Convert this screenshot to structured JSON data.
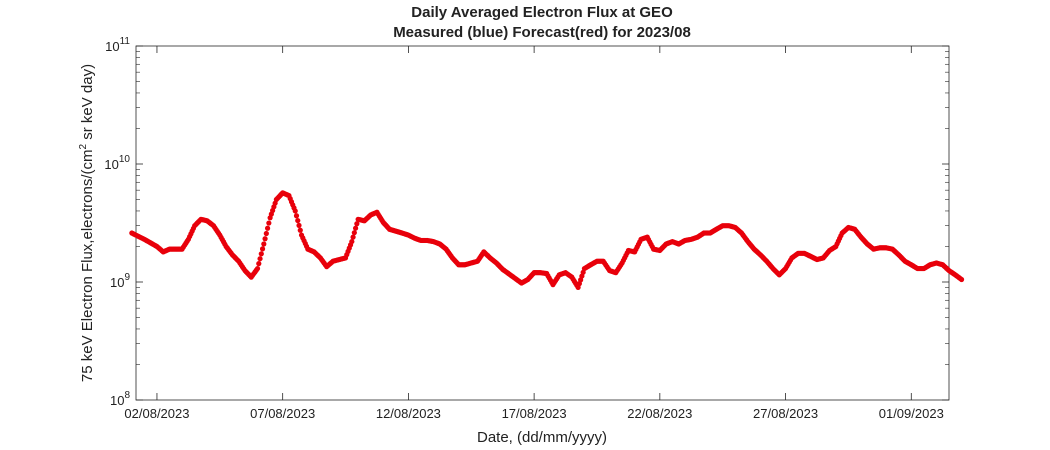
{
  "chart_data": {
    "type": "scatter",
    "title": "Daily Averaged Electron Flux at GEO",
    "subtitle": "Measured (blue) Forecast(red) for 2023/08",
    "xlabel": "Date, (dd/mm/yyyy)",
    "ylabel": "75 keV Electron Flux,electrons/(cm² sr keV day)",
    "ylabel_parts": [
      "75 keV Electron Flux,electrons/(cm",
      "2",
      " sr keV day)"
    ],
    "yscale": "log",
    "ylim": [
      100000000,
      100000000000
    ],
    "xlim": [
      "2023-08-01 04:00",
      "2023-09-02 12:00"
    ],
    "grid": false,
    "x_ticks": [
      "02/08/2023",
      "07/08/2023",
      "12/08/2023",
      "17/08/2023",
      "22/08/2023",
      "27/08/2023",
      "01/09/2023"
    ],
    "y_ticks": [
      {
        "value": 100000000,
        "base": "10",
        "exponent": "8"
      },
      {
        "value": 1000000000,
        "base": "10",
        "exponent": "9"
      },
      {
        "value": 10000000000,
        "base": "10",
        "exponent": "10"
      },
      {
        "value": 100000000000,
        "base": "10",
        "exponent": "11"
      }
    ],
    "series": [
      {
        "color": "#e8000b",
        "points": [
          [
            "2023-08-01 00:00",
            2600000000.0
          ],
          [
            "2023-08-01 12:00",
            2300000000.0
          ],
          [
            "2023-08-02 00:00",
            2000000000.0
          ],
          [
            "2023-08-02 06:00",
            1800000000.0
          ],
          [
            "2023-08-02 12:00",
            1900000000.0
          ],
          [
            "2023-08-03 00:00",
            1900000000.0
          ],
          [
            "2023-08-03 06:00",
            2300000000.0
          ],
          [
            "2023-08-03 12:00",
            3000000000.0
          ],
          [
            "2023-08-03 18:00",
            3400000000.0
          ],
          [
            "2023-08-04 00:00",
            3300000000.0
          ],
          [
            "2023-08-04 06:00",
            3000000000.0
          ],
          [
            "2023-08-04 12:00",
            2500000000.0
          ],
          [
            "2023-08-04 18:00",
            2000000000.0
          ],
          [
            "2023-08-05 00:00",
            1700000000.0
          ],
          [
            "2023-08-05 06:00",
            1500000000.0
          ],
          [
            "2023-08-05 12:00",
            1250000000.0
          ],
          [
            "2023-08-05 18:00",
            1100000000.0
          ],
          [
            "2023-08-06 00:00",
            1300000000.0
          ],
          [
            "2023-08-06 06:00",
            2100000000.0
          ],
          [
            "2023-08-06 12:00",
            3500000000.0
          ],
          [
            "2023-08-06 18:00",
            5000000000.0
          ],
          [
            "2023-08-07 00:00",
            5700000000.0
          ],
          [
            "2023-08-07 06:00",
            5400000000.0
          ],
          [
            "2023-08-07 12:00",
            4000000000.0
          ],
          [
            "2023-08-07 18:00",
            2500000000.0
          ],
          [
            "2023-08-08 00:00",
            1900000000.0
          ],
          [
            "2023-08-08 06:00",
            1800000000.0
          ],
          [
            "2023-08-08 12:00",
            1600000000.0
          ],
          [
            "2023-08-08 18:00",
            1350000000.0
          ],
          [
            "2023-08-09 00:00",
            1500000000.0
          ],
          [
            "2023-08-09 06:00",
            1550000000.0
          ],
          [
            "2023-08-09 12:00",
            1600000000.0
          ],
          [
            "2023-08-09 18:00",
            2200000000.0
          ],
          [
            "2023-08-10 00:00",
            3400000000.0
          ],
          [
            "2023-08-10 06:00",
            3300000000.0
          ],
          [
            "2023-08-10 12:00",
            3700000000.0
          ],
          [
            "2023-08-10 18:00",
            3900000000.0
          ],
          [
            "2023-08-11 00:00",
            3200000000.0
          ],
          [
            "2023-08-11 06:00",
            2800000000.0
          ],
          [
            "2023-08-11 12:00",
            2700000000.0
          ],
          [
            "2023-08-11 18:00",
            2600000000.0
          ],
          [
            "2023-08-12 00:00",
            2500000000.0
          ],
          [
            "2023-08-12 06:00",
            2350000000.0
          ],
          [
            "2023-08-12 12:00",
            2250000000.0
          ],
          [
            "2023-08-12 18:00",
            2250000000.0
          ],
          [
            "2023-08-13 00:00",
            2200000000.0
          ],
          [
            "2023-08-13 06:00",
            2100000000.0
          ],
          [
            "2023-08-13 12:00",
            1900000000.0
          ],
          [
            "2023-08-13 18:00",
            1600000000.0
          ],
          [
            "2023-08-14 00:00",
            1400000000.0
          ],
          [
            "2023-08-14 06:00",
            1400000000.0
          ],
          [
            "2023-08-14 12:00",
            1450000000.0
          ],
          [
            "2023-08-14 18:00",
            1500000000.0
          ],
          [
            "2023-08-15 00:00",
            1800000000.0
          ],
          [
            "2023-08-15 06:00",
            1600000000.0
          ],
          [
            "2023-08-15 12:00",
            1450000000.0
          ],
          [
            "2023-08-15 18:00",
            1280000000.0
          ],
          [
            "2023-08-16 12:00",
            980000000.0
          ],
          [
            "2023-08-16 18:00",
            1050000000.0
          ],
          [
            "2023-08-17 00:00",
            1200000000.0
          ],
          [
            "2023-08-17 06:00",
            1200000000.0
          ],
          [
            "2023-08-17 12:00",
            1180000000.0
          ],
          [
            "2023-08-17 18:00",
            950000000.0
          ],
          [
            "2023-08-18 00:00",
            1150000000.0
          ],
          [
            "2023-08-18 06:00",
            1200000000.0
          ],
          [
            "2023-08-18 12:00",
            1100000000.0
          ],
          [
            "2023-08-18 18:00",
            900000000.0
          ],
          [
            "2023-08-19 00:00",
            1300000000.0
          ],
          [
            "2023-08-19 06:00",
            1400000000.0
          ],
          [
            "2023-08-19 12:00",
            1500000000.0
          ],
          [
            "2023-08-19 18:00",
            1500000000.0
          ],
          [
            "2023-08-20 00:00",
            1250000000.0
          ],
          [
            "2023-08-20 06:00",
            1200000000.0
          ],
          [
            "2023-08-20 12:00",
            1450000000.0
          ],
          [
            "2023-08-20 18:00",
            1850000000.0
          ],
          [
            "2023-08-21 00:00",
            1800000000.0
          ],
          [
            "2023-08-21 06:00",
            2300000000.0
          ],
          [
            "2023-08-21 12:00",
            2400000000.0
          ],
          [
            "2023-08-21 18:00",
            1900000000.0
          ],
          [
            "2023-08-22 00:00",
            1850000000.0
          ],
          [
            "2023-08-22 06:00",
            2100000000.0
          ],
          [
            "2023-08-22 12:00",
            2200000000.0
          ],
          [
            "2023-08-22 18:00",
            2100000000.0
          ],
          [
            "2023-08-23 00:00",
            2250000000.0
          ],
          [
            "2023-08-23 06:00",
            2300000000.0
          ],
          [
            "2023-08-23 12:00",
            2400000000.0
          ],
          [
            "2023-08-23 18:00",
            2600000000.0
          ],
          [
            "2023-08-24 00:00",
            2600000000.0
          ],
          [
            "2023-08-24 06:00",
            2800000000.0
          ],
          [
            "2023-08-24 12:00",
            3000000000.0
          ],
          [
            "2023-08-24 18:00",
            3000000000.0
          ],
          [
            "2023-08-25 00:00",
            2900000000.0
          ],
          [
            "2023-08-25 06:00",
            2600000000.0
          ],
          [
            "2023-08-25 12:00",
            2200000000.0
          ],
          [
            "2023-08-25 18:00",
            1900000000.0
          ],
          [
            "2023-08-26 00:00",
            1700000000.0
          ],
          [
            "2023-08-26 06:00",
            1500000000.0
          ],
          [
            "2023-08-26 12:00",
            1300000000.0
          ],
          [
            "2023-08-26 18:00",
            1150000000.0
          ],
          [
            "2023-08-27 00:00",
            1300000000.0
          ],
          [
            "2023-08-27 06:00",
            1600000000.0
          ],
          [
            "2023-08-27 12:00",
            1750000000.0
          ],
          [
            "2023-08-27 18:00",
            1750000000.0
          ],
          [
            "2023-08-28 00:00",
            1650000000.0
          ],
          [
            "2023-08-28 06:00",
            1550000000.0
          ],
          [
            "2023-08-28 12:00",
            1600000000.0
          ],
          [
            "2023-08-28 18:00",
            1850000000.0
          ],
          [
            "2023-08-29 00:00",
            2000000000.0
          ],
          [
            "2023-08-29 06:00",
            2600000000.0
          ],
          [
            "2023-08-29 12:00",
            2900000000.0
          ],
          [
            "2023-08-29 18:00",
            2800000000.0
          ],
          [
            "2023-08-30 00:00",
            2400000000.0
          ],
          [
            "2023-08-30 06:00",
            2100000000.0
          ],
          [
            "2023-08-30 12:00",
            1900000000.0
          ],
          [
            "2023-08-30 18:00",
            1950000000.0
          ],
          [
            "2023-08-31 00:00",
            1950000000.0
          ],
          [
            "2023-08-31 06:00",
            1900000000.0
          ],
          [
            "2023-08-31 12:00",
            1700000000.0
          ],
          [
            "2023-08-31 18:00",
            1500000000.0
          ],
          [
            "2023-09-01 00:00",
            1400000000.0
          ],
          [
            "2023-09-01 06:00",
            1300000000.0
          ],
          [
            "2023-09-01 12:00",
            1300000000.0
          ],
          [
            "2023-09-01 18:00",
            1400000000.0
          ],
          [
            "2023-09-02 00:00",
            1450000000.0
          ],
          [
            "2023-09-02 06:00",
            1400000000.0
          ],
          [
            "2023-09-02 12:00",
            1250000000.0
          ],
          [
            "2023-09-02 18:00",
            1150000000.0
          ],
          [
            "2023-09-03 00:00",
            1050000000.0
          ]
        ]
      }
    ]
  }
}
